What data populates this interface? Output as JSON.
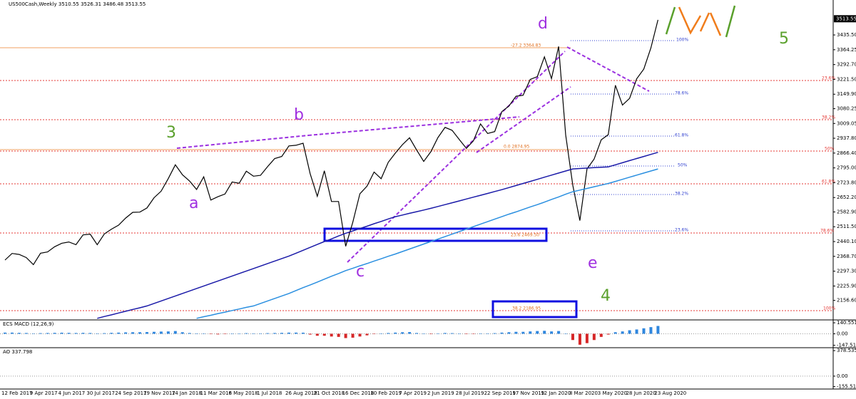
{
  "chart_data": [
    {
      "type": "line",
      "title": "US500Cash,Weekly  3510.55 3526.31 3486.48 3513.55",
      "categories": [
        "12 Feb 2017",
        null,
        null,
        null,
        "9 Apr 2017",
        null,
        null,
        null,
        "4 Jun 2017",
        null,
        null,
        null,
        "30 Jul 2017",
        null,
        null,
        null,
        "24 Sep 2017",
        null,
        null,
        null,
        "19 Nov 2017",
        null,
        null,
        null,
        "14 Jan 2018",
        null,
        null,
        null,
        "11 Mar 2018",
        null,
        null,
        null,
        "6 May 2018",
        null,
        null,
        null,
        "1 Jul 2018",
        null,
        null,
        null,
        "26 Aug 2018",
        null,
        null,
        null,
        "21 Oct 2018",
        null,
        null,
        null,
        "16 Dec 2018",
        null,
        null,
        null,
        "10 Feb 2019",
        null,
        null,
        null,
        "7 Apr 2019",
        null,
        null,
        null,
        "2 Jun 2019",
        null,
        null,
        null,
        "28 Jul 2019",
        null,
        null,
        null,
        "22 Sep 2019",
        null,
        null,
        null,
        "17 Nov 2019",
        null,
        null,
        null,
        "12 Jan 2020",
        null,
        null,
        null,
        "8 Mar 2020",
        null,
        null,
        null,
        "3 May 2020",
        null,
        null,
        null,
        "28 Jun 2020",
        null,
        null,
        null,
        "23 Aug 2020"
      ],
      "series": [
        {
          "color": "#000000",
          "values": [
            2351,
            2383,
            2378,
            2363,
            2329,
            2384,
            2390,
            2415,
            2432,
            2438,
            2425,
            2472,
            2476,
            2425,
            2477,
            2500,
            2519,
            2553,
            2581,
            2582,
            2602,
            2651,
            2683,
            2743,
            2810,
            2762,
            2732,
            2691,
            2752,
            2640,
            2656,
            2669,
            2727,
            2721,
            2779,
            2755,
            2759,
            2801,
            2840,
            2850,
            2901,
            2904,
            2914,
            2767,
            2658,
            2781,
            2633,
            2633,
            2417,
            2532,
            2670,
            2707,
            2775,
            2743,
            2822,
            2867,
            2907,
            2940,
            2881,
            2826,
            2873,
            2941,
            2990,
            2976,
            2932,
            2889,
            2926,
            3007,
            2961,
            2970,
            3066,
            3093,
            3140,
            3145,
            3221,
            3235,
            3330,
            3225,
            3380,
            2954,
            2711,
            2541,
            2790,
            2837,
            2930,
            2955,
            3193,
            3098,
            3130,
            3224,
            3271,
            3372,
            3508
          ]
        },
        {
          "color": "#1a1aa8",
          "values": [
            null,
            null,
            null,
            null,
            null,
            null,
            null,
            null,
            null,
            null,
            null,
            null,
            null,
            2070,
            2079,
            2087,
            2096,
            2104,
            2113,
            2121,
            2130,
            2142,
            2154,
            2166,
            2178,
            2190,
            2202,
            2214,
            2226,
            2238,
            2250,
            2262,
            2274,
            2286,
            2298,
            2310,
            2322,
            2334,
            2346,
            2358,
            2370,
            2384,
            2398,
            2412,
            2426,
            2440,
            2453,
            2467,
            2480,
            2491,
            2503,
            2514,
            2526,
            2537,
            2549,
            2560,
            2568,
            2576,
            2584,
            2592,
            2600,
            2609,
            2618,
            2627,
            2636,
            2645,
            2654,
            2663,
            2672,
            2681,
            2690,
            2700,
            2710,
            2720,
            2730,
            2740,
            2750,
            2760,
            2770,
            2780,
            2790,
            2792,
            2794,
            2796,
            2798,
            2800,
            2810,
            2820,
            2830,
            2840,
            2850,
            2860,
            2870
          ]
        },
        {
          "color": "#2a8fe0",
          "values": [
            null,
            null,
            null,
            null,
            null,
            null,
            null,
            null,
            null,
            null,
            null,
            null,
            null,
            null,
            null,
            null,
            null,
            null,
            null,
            null,
            null,
            null,
            null,
            null,
            null,
            null,
            null,
            2070,
            2078,
            2085,
            2093,
            2100,
            2108,
            2115,
            2123,
            2130,
            2142,
            2154,
            2166,
            2178,
            2190,
            2204,
            2218,
            2231,
            2245,
            2259,
            2273,
            2286,
            2300,
            2311,
            2323,
            2334,
            2346,
            2357,
            2369,
            2380,
            2392,
            2404,
            2416,
            2428,
            2440,
            2452,
            2464,
            2476,
            2488,
            2500,
            2512,
            2524,
            2536,
            2548,
            2560,
            2572,
            2583,
            2595,
            2607,
            2618,
            2630,
            2643,
            2655,
            2668,
            2680,
            2688,
            2696,
            2704,
            2712,
            2720,
            2730,
            2740,
            2750,
            2760,
            2770,
            2780,
            2790
          ]
        }
      ],
      "ylim": [
        2066,
        3597
      ],
      "yticks": [
        {
          "value": 3435.5,
          "label": "3435.50"
        },
        3364.25,
        {
          "value": 3292.7,
          "label": "3292.70"
        },
        {
          "value": 3221.5,
          "label": "3221.50"
        },
        {
          "value": 3149.9,
          "label": "3149.90"
        },
        3080.25,
        3009.05,
        {
          "value": 2937.8,
          "label": "2937.80"
        },
        {
          "value": 2866.4,
          "label": "2866.40"
        },
        {
          "value": 2795,
          "label": "2795.00"
        },
        {
          "value": 2723.8,
          "label": "2723.80"
        },
        {
          "value": 2652.2,
          "label": "2652.20"
        },
        {
          "value": 2582.9,
          "label": "2582.90"
        },
        {
          "value": 2511.5,
          "label": "2511.50"
        },
        {
          "value": 2440.1,
          "label": "2440.10"
        },
        {
          "value": 2368.7,
          "label": "2368.70"
        },
        {
          "value": 2297.3,
          "label": "2297.30"
        },
        {
          "value": 2225.9,
          "label": "2225.90"
        },
        {
          "value": 2156.6,
          "label": "2156.60"
        }
      ],
      "last_price": {
        "value": 3513.55,
        "label": "3513.55"
      },
      "annotations": {
        "waves": [
          "3",
          "a",
          "b",
          "c",
          "d",
          "e",
          "4",
          "5"
        ],
        "fib_extension": [
          "-27.2 3364.83",
          "0.0 2874.95",
          "23.6 2469.50",
          "38.2 2186.95"
        ],
        "fib_blue": [
          "100%",
          "78.6%",
          "61.8%",
          "50%",
          "38.2%",
          "23.6%"
        ],
        "fib_red": [
          "23.6%",
          "38.2%",
          "50%",
          "61.8%",
          "78.6%",
          "100%"
        ]
      }
    },
    {
      "type": "bar",
      "title": "ECS MACD (12,26,9)",
      "color": "#2e86de",
      "negative_color": "#d62728",
      "values": [
        15,
        15,
        12,
        10,
        5,
        8,
        10,
        12,
        14,
        12,
        10,
        12,
        10,
        5,
        8,
        12,
        15,
        18,
        20,
        20,
        22,
        25,
        28,
        30,
        35,
        20,
        10,
        5,
        5,
        -5,
        -8,
        -5,
        0,
        3,
        8,
        5,
        5,
        8,
        10,
        12,
        15,
        15,
        14,
        -10,
        -25,
        -25,
        -35,
        -40,
        -55,
        -50,
        -35,
        -20,
        -5,
        5,
        10,
        15,
        20,
        22,
        10,
        0,
        -5,
        5,
        10,
        8,
        0,
        -5,
        -3,
        5,
        5,
        8,
        15,
        20,
        25,
        25,
        30,
        35,
        38,
        30,
        35,
        0,
        -80,
        -140,
        -120,
        -80,
        -40,
        -10,
        20,
        30,
        45,
        55,
        70,
        85,
        100
      ],
      "ylim": [
        -160,
        150
      ],
      "yticks": [
        140.551,
        {
          "value": 0,
          "label": "0.00"
        },
        -147.5156
      ]
    },
    {
      "type": "bar",
      "title": "AO 337.798",
      "ylim": [
        -170,
        390
      ],
      "yticks": [
        378.535,
        {
          "value": 0,
          "label": "0.00"
        },
        -155.5156
      ]
    }
  ]
}
